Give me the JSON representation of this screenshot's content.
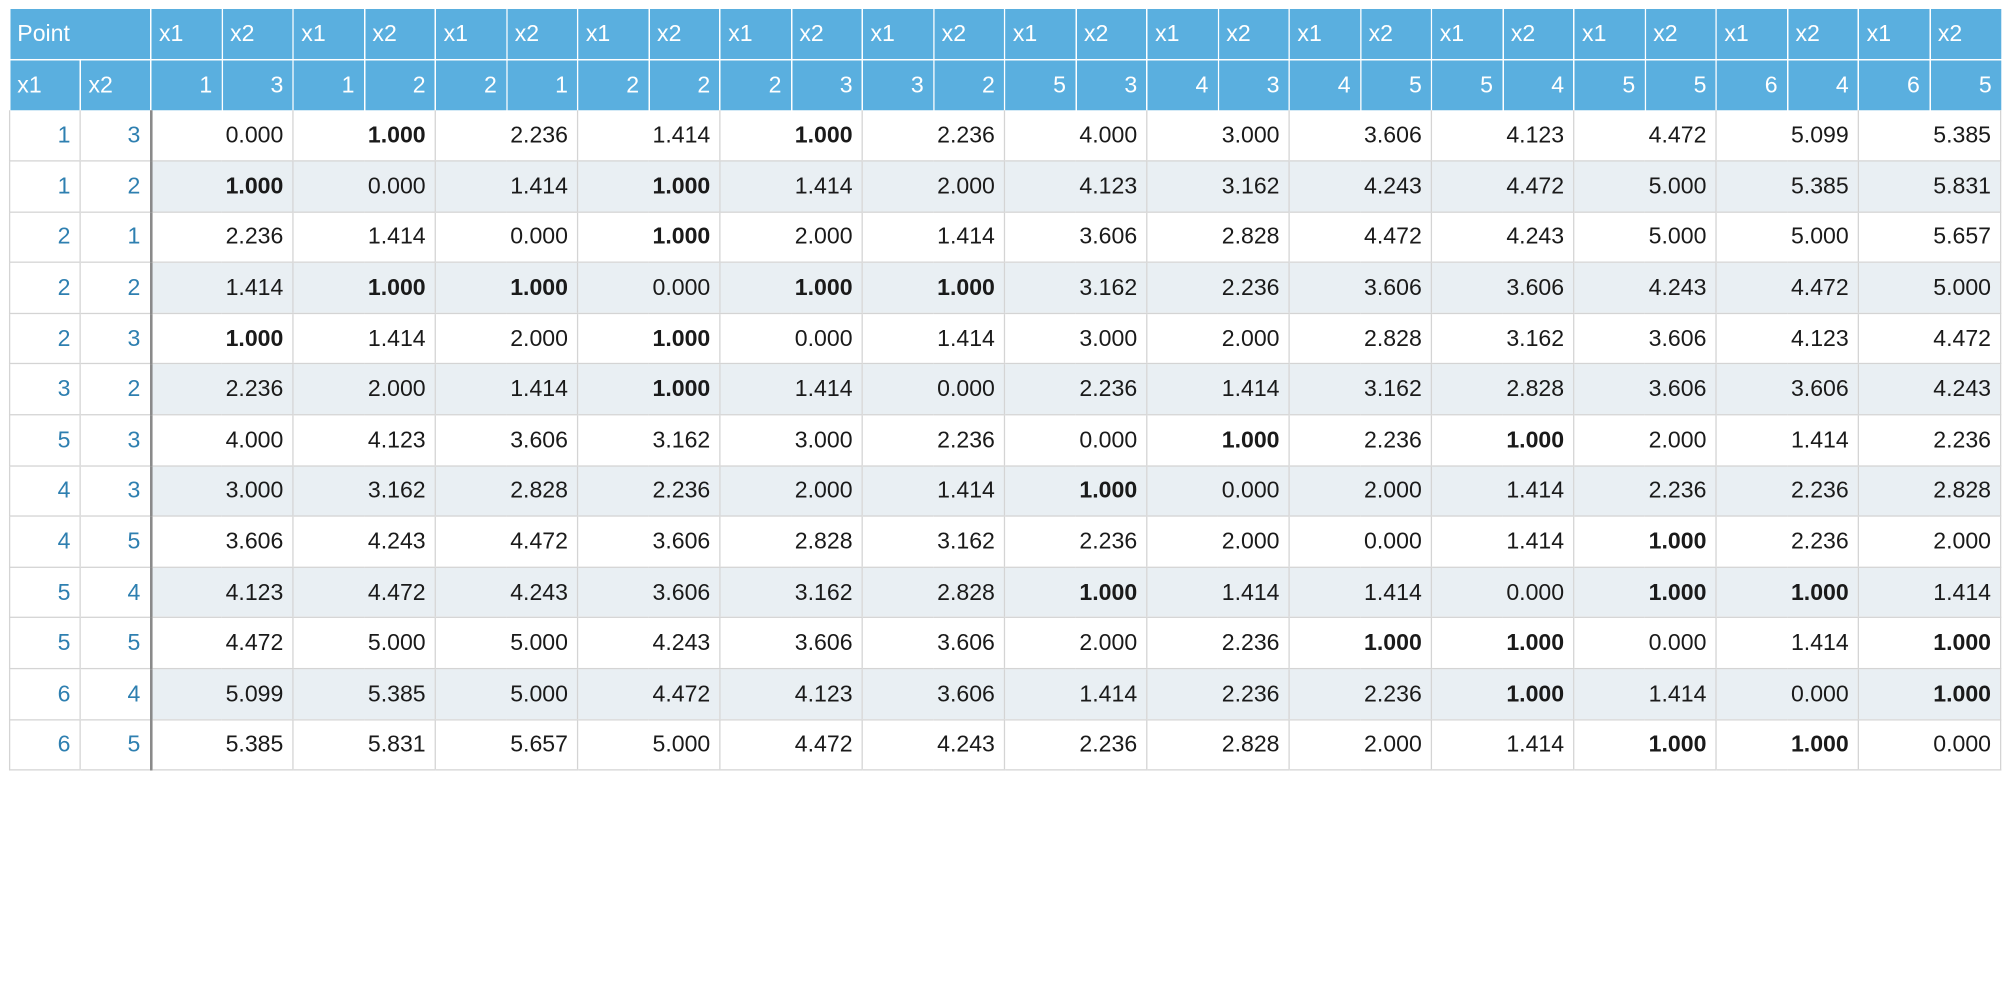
{
  "table": {
    "point_label": "Point",
    "coord_labels": [
      "x1",
      "x2"
    ],
    "points": [
      {
        "x1": "1",
        "x2": "3"
      },
      {
        "x1": "1",
        "x2": "2"
      },
      {
        "x1": "2",
        "x2": "1"
      },
      {
        "x1": "2",
        "x2": "2"
      },
      {
        "x1": "2",
        "x2": "3"
      },
      {
        "x1": "3",
        "x2": "2"
      },
      {
        "x1": "5",
        "x2": "3"
      },
      {
        "x1": "4",
        "x2": "3"
      },
      {
        "x1": "4",
        "x2": "5"
      },
      {
        "x1": "5",
        "x2": "4"
      },
      {
        "x1": "5",
        "x2": "5"
      },
      {
        "x1": "6",
        "x2": "4"
      },
      {
        "x1": "6",
        "x2": "5"
      }
    ],
    "distances": [
      [
        "0.000",
        "1.000",
        "2.236",
        "1.414",
        "1.000",
        "2.236",
        "4.000",
        "3.000",
        "3.606",
        "4.123",
        "4.472",
        "5.099",
        "5.385"
      ],
      [
        "1.000",
        "0.000",
        "1.414",
        "1.000",
        "1.414",
        "2.000",
        "4.123",
        "3.162",
        "4.243",
        "4.472",
        "5.000",
        "5.385",
        "5.831"
      ],
      [
        "2.236",
        "1.414",
        "0.000",
        "1.000",
        "2.000",
        "1.414",
        "3.606",
        "2.828",
        "4.472",
        "4.243",
        "5.000",
        "5.000",
        "5.657"
      ],
      [
        "1.414",
        "1.000",
        "1.000",
        "0.000",
        "1.000",
        "1.000",
        "3.162",
        "2.236",
        "3.606",
        "3.606",
        "4.243",
        "4.472",
        "5.000"
      ],
      [
        "1.000",
        "1.414",
        "2.000",
        "1.000",
        "0.000",
        "1.414",
        "3.000",
        "2.000",
        "2.828",
        "3.162",
        "3.606",
        "4.123",
        "4.472"
      ],
      [
        "2.236",
        "2.000",
        "1.414",
        "1.000",
        "1.414",
        "0.000",
        "2.236",
        "1.414",
        "3.162",
        "2.828",
        "3.606",
        "3.606",
        "4.243"
      ],
      [
        "4.000",
        "4.123",
        "3.606",
        "3.162",
        "3.000",
        "2.236",
        "0.000",
        "1.000",
        "2.236",
        "1.000",
        "2.000",
        "1.414",
        "2.236"
      ],
      [
        "3.000",
        "3.162",
        "2.828",
        "2.236",
        "2.000",
        "1.414",
        "1.000",
        "0.000",
        "2.000",
        "1.414",
        "2.236",
        "2.236",
        "2.828"
      ],
      [
        "3.606",
        "4.243",
        "4.472",
        "3.606",
        "2.828",
        "3.162",
        "2.236",
        "2.000",
        "0.000",
        "1.414",
        "1.000",
        "2.236",
        "2.000"
      ],
      [
        "4.123",
        "4.472",
        "4.243",
        "3.606",
        "3.162",
        "2.828",
        "1.000",
        "1.414",
        "1.414",
        "0.000",
        "1.000",
        "1.000",
        "1.414"
      ],
      [
        "4.472",
        "5.000",
        "5.000",
        "4.243",
        "3.606",
        "3.606",
        "2.000",
        "2.236",
        "1.000",
        "1.000",
        "0.000",
        "1.414",
        "1.000"
      ],
      [
        "5.099",
        "5.385",
        "5.000",
        "4.472",
        "4.123",
        "3.606",
        "1.414",
        "2.236",
        "2.236",
        "1.000",
        "1.414",
        "0.000",
        "1.000"
      ],
      [
        "5.385",
        "5.831",
        "5.657",
        "5.000",
        "4.472",
        "4.243",
        "2.236",
        "2.828",
        "2.000",
        "1.414",
        "1.000",
        "1.000",
        "0.000"
      ]
    ],
    "bold_value": "1.000"
  },
  "colors": {
    "header_bg": "#5aafdf",
    "header_text": "#ffffff",
    "key_text": "#2e7fb0",
    "alt_row_bg": "#e9eff3",
    "grid_line": "#d4d4d4"
  }
}
